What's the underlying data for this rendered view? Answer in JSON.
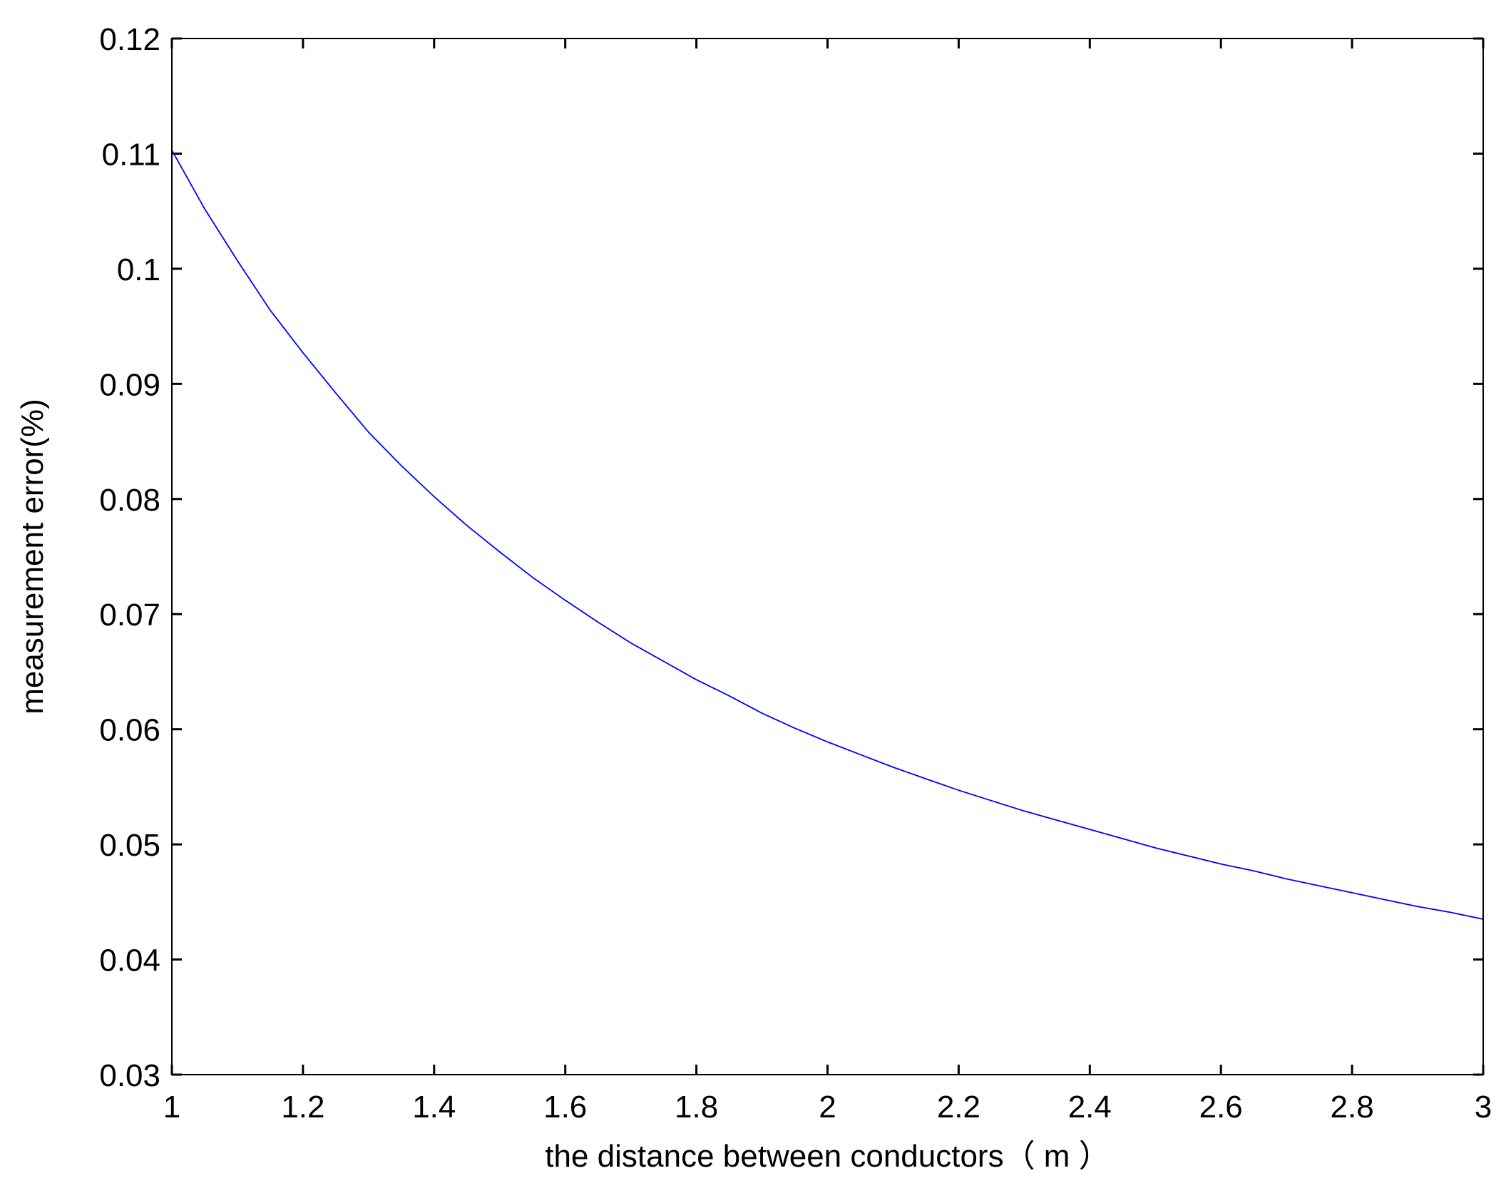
{
  "chart_data": {
    "type": "line",
    "title": "",
    "xlabel": "the distance between conductors（ m ）",
    "ylabel": "measurement error(%)",
    "xlim": [
      1,
      3
    ],
    "ylim": [
      0.03,
      0.12
    ],
    "xticks": [
      1,
      1.2,
      1.4,
      1.6,
      1.8,
      2,
      2.2,
      2.4,
      2.6,
      2.8,
      3
    ],
    "xtick_labels": [
      "1",
      "1.2",
      "1.4",
      "1.6",
      "1.8",
      "2",
      "2.2",
      "2.4",
      "2.6",
      "2.8",
      "3"
    ],
    "yticks": [
      0.03,
      0.04,
      0.05,
      0.06,
      0.07,
      0.08,
      0.09,
      0.1,
      0.11,
      0.12
    ],
    "ytick_labels": [
      "0.03",
      "0.04",
      "0.05",
      "0.06",
      "0.07",
      "0.08",
      "0.09",
      "0.1",
      "0.11",
      "0.12"
    ],
    "grid": false,
    "line_color": "#0000ff",
    "axis_color": "#000000",
    "background": "#ffffff",
    "series": [
      {
        "x": [
          1.0,
          1.05,
          1.1,
          1.15,
          1.2,
          1.25,
          1.3,
          1.35,
          1.4,
          1.45,
          1.5,
          1.55,
          1.6,
          1.65,
          1.7,
          1.75,
          1.8,
          1.85,
          1.9,
          1.95,
          2.0,
          2.05,
          2.1,
          2.15,
          2.2,
          2.25,
          2.3,
          2.35,
          2.4,
          2.45,
          2.5,
          2.55,
          2.6,
          2.65,
          2.7,
          2.75,
          2.8,
          2.85,
          2.9,
          2.95,
          3.0
        ],
        "values": [
          0.1103,
          0.1052,
          0.1007,
          0.0964,
          0.0927,
          0.0892,
          0.0858,
          0.0829,
          0.0802,
          0.0777,
          0.0754,
          0.0732,
          0.0712,
          0.0693,
          0.0675,
          0.0659,
          0.0643,
          0.0629,
          0.0614,
          0.0601,
          0.0589,
          0.0578,
          0.0567,
          0.0557,
          0.0547,
          0.0538,
          0.0529,
          0.0521,
          0.0513,
          0.0505,
          0.0497,
          0.049,
          0.0483,
          0.0477,
          0.047,
          0.0464,
          0.0458,
          0.0452,
          0.0446,
          0.0441,
          0.0435
        ]
      }
    ]
  }
}
